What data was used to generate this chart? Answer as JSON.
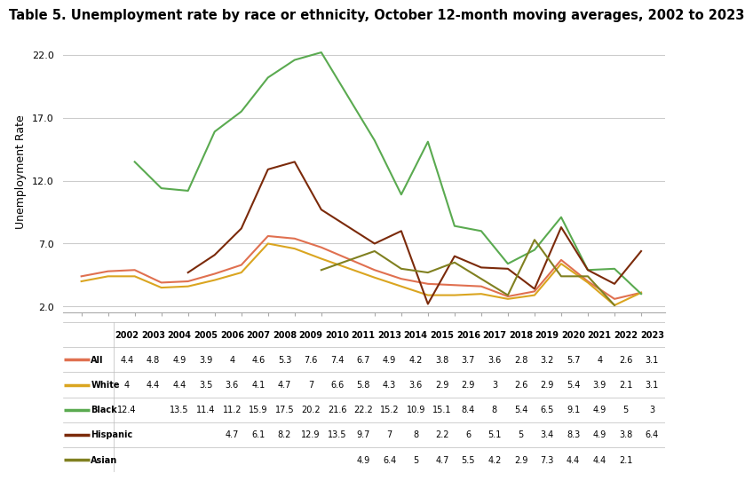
{
  "title": "Table 5. Unemployment rate by race or ethnicity, October 12-month moving averages, 2002 to 2023",
  "ylabel": "Unemployment Rate",
  "yticks": [
    2.0,
    7.0,
    12.0,
    17.0,
    22.0
  ],
  "years": [
    2002,
    2003,
    2004,
    2005,
    2006,
    2007,
    2008,
    2009,
    2010,
    2011,
    2013,
    2014,
    2015,
    2016,
    2017,
    2018,
    2019,
    2020,
    2021,
    2022,
    2023
  ],
  "series_names": [
    "All",
    "White",
    "Black",
    "Hispanic",
    "Asian"
  ],
  "series_values": {
    "All": [
      4.4,
      4.8,
      4.9,
      3.9,
      4.0,
      4.6,
      5.3,
      7.6,
      7.4,
      6.7,
      4.9,
      4.2,
      3.8,
      3.7,
      3.6,
      2.8,
      3.2,
      5.7,
      4.0,
      2.6,
      3.1
    ],
    "White": [
      4.0,
      4.4,
      4.4,
      3.5,
      3.6,
      4.1,
      4.7,
      7.0,
      6.6,
      5.8,
      4.3,
      3.6,
      2.9,
      2.9,
      3.0,
      2.6,
      2.9,
      5.4,
      3.9,
      2.1,
      3.1
    ],
    "Black": [
      12.4,
      null,
      13.5,
      11.4,
      11.2,
      15.9,
      17.5,
      20.2,
      21.6,
      22.2,
      15.2,
      10.9,
      15.1,
      8.4,
      8.0,
      5.4,
      6.5,
      9.1,
      4.9,
      5.0,
      3.0
    ],
    "Hispanic": [
      null,
      null,
      null,
      null,
      4.7,
      6.1,
      8.2,
      12.9,
      13.5,
      9.7,
      7.0,
      8.0,
      2.2,
      6.0,
      5.1,
      5.0,
      3.4,
      8.3,
      4.9,
      3.8,
      6.4
    ],
    "Asian": [
      null,
      null,
      null,
      null,
      null,
      null,
      null,
      null,
      null,
      4.9,
      6.4,
      5.0,
      4.7,
      5.5,
      4.2,
      2.9,
      7.3,
      4.4,
      4.4,
      2.1,
      null
    ]
  },
  "line_colors": {
    "All": "#E07050",
    "White": "#DAA520",
    "Black": "#5AAA50",
    "Hispanic": "#7B2A0A",
    "Asian": "#808020"
  },
  "background_color": "#FFFFFF",
  "grid_color": "#CCCCCC",
  "title_fontsize": 10.5,
  "axis_label_fontsize": 9,
  "tick_fontsize": 8,
  "table_fontsize": 7,
  "ylim": [
    1.5,
    24.0
  ]
}
